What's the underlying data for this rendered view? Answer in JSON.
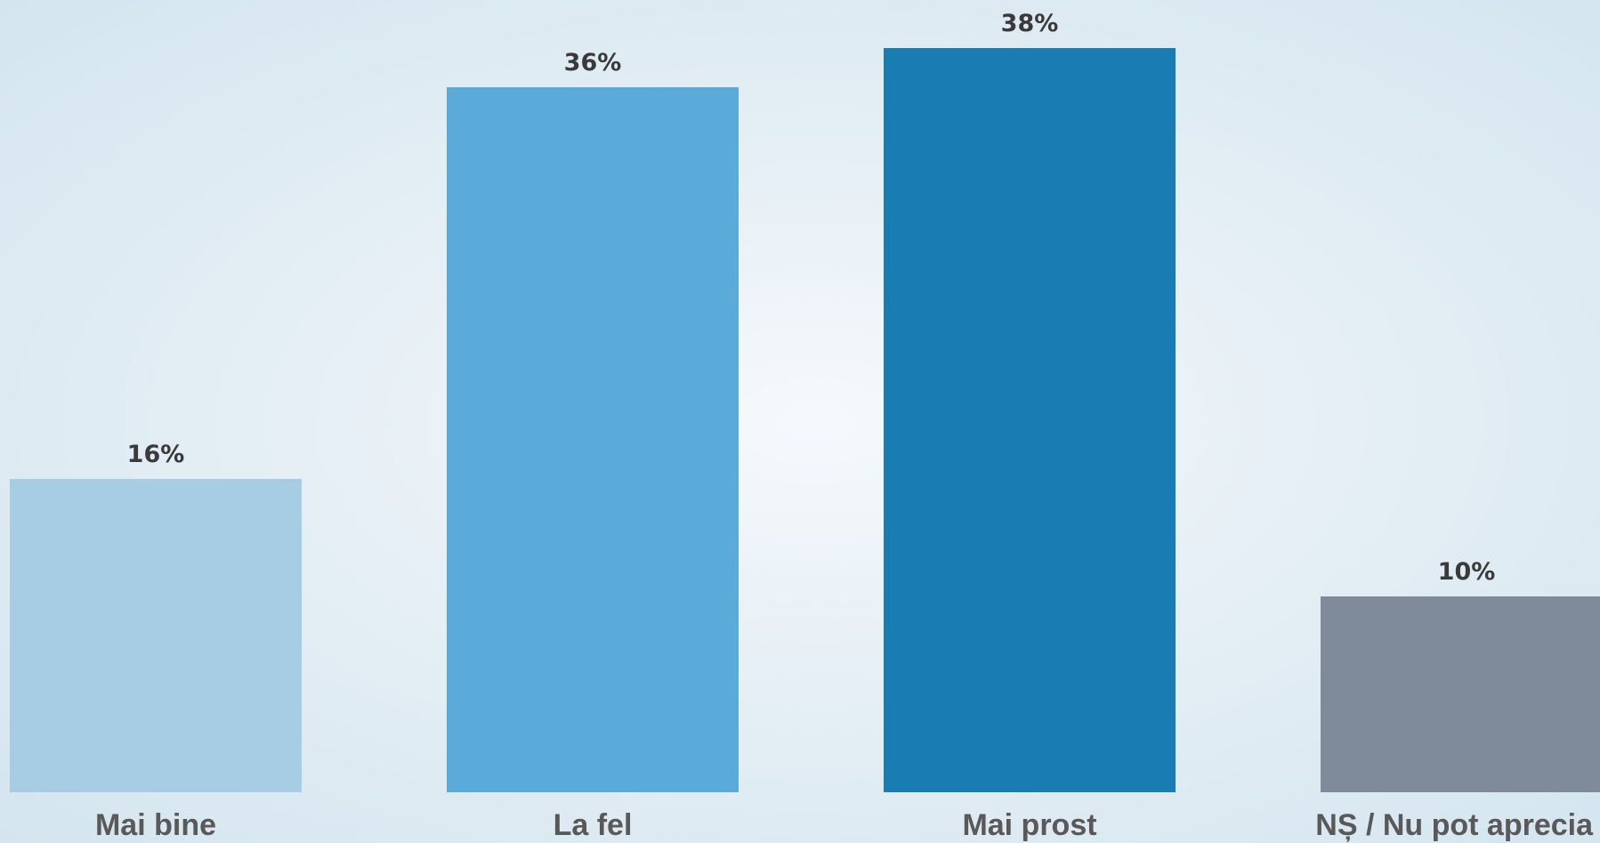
{
  "chart_data": {
    "type": "bar",
    "title": "",
    "xlabel": "",
    "ylabel": "",
    "categories": [
      "Mai bine",
      "La fel",
      "Mai prost",
      "NȘ / Nu pot aprecia"
    ],
    "values": [
      16,
      36,
      38,
      10
    ],
    "value_labels": [
      "16%",
      "36%",
      "38%",
      "10%"
    ],
    "colors": [
      "#a6cde4",
      "#5aaada",
      "#197db4",
      "#7f8b9b"
    ],
    "ylim": [
      0,
      38
    ],
    "grid": false,
    "legend": "none"
  }
}
